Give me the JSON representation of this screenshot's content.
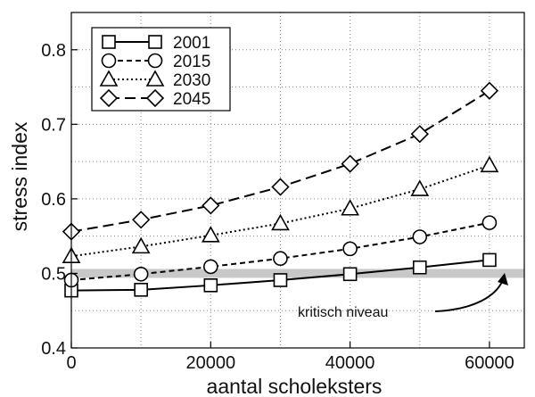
{
  "chart_data": {
    "type": "line",
    "title": "",
    "xlabel": "aantal scholeksters",
    "ylabel": "stress index",
    "xlim": [
      0,
      65000
    ],
    "ylim": [
      0.4,
      0.85
    ],
    "x_ticks": [
      "0",
      "20000",
      "40000",
      "60000"
    ],
    "x_tick_values": [
      0,
      20000,
      40000,
      60000
    ],
    "y_ticks": [
      "0.4",
      "0.5",
      "0.6",
      "0.7",
      "0.8"
    ],
    "y_tick_values": [
      0.4,
      0.5,
      0.6,
      0.7,
      0.8
    ],
    "grid": true,
    "legend_position": "top-left",
    "x": [
      0,
      10000,
      20000,
      30000,
      40000,
      50000,
      60000
    ],
    "series": [
      {
        "name": "2001",
        "marker": "square",
        "line": "solid",
        "values": [
          0.477,
          0.478,
          0.484,
          0.491,
          0.499,
          0.508,
          0.518
        ]
      },
      {
        "name": "2015",
        "marker": "circle",
        "line": "dashed",
        "values": [
          0.491,
          0.499,
          0.509,
          0.52,
          0.533,
          0.549,
          0.568
        ]
      },
      {
        "name": "2030",
        "marker": "triangle",
        "line": "dotted",
        "values": [
          0.523,
          0.536,
          0.551,
          0.567,
          0.587,
          0.613,
          0.645
        ]
      },
      {
        "name": "2045",
        "marker": "diamond",
        "line": "longdash",
        "values": [
          0.556,
          0.572,
          0.591,
          0.616,
          0.647,
          0.687,
          0.745
        ]
      }
    ],
    "reference_band": {
      "y": 0.5,
      "x_range": [
        0,
        65000
      ],
      "color": "#c8c8c8"
    },
    "annotation": {
      "text": "kritisch niveau",
      "points_to": {
        "x": 63000,
        "y": 0.5
      }
    }
  }
}
